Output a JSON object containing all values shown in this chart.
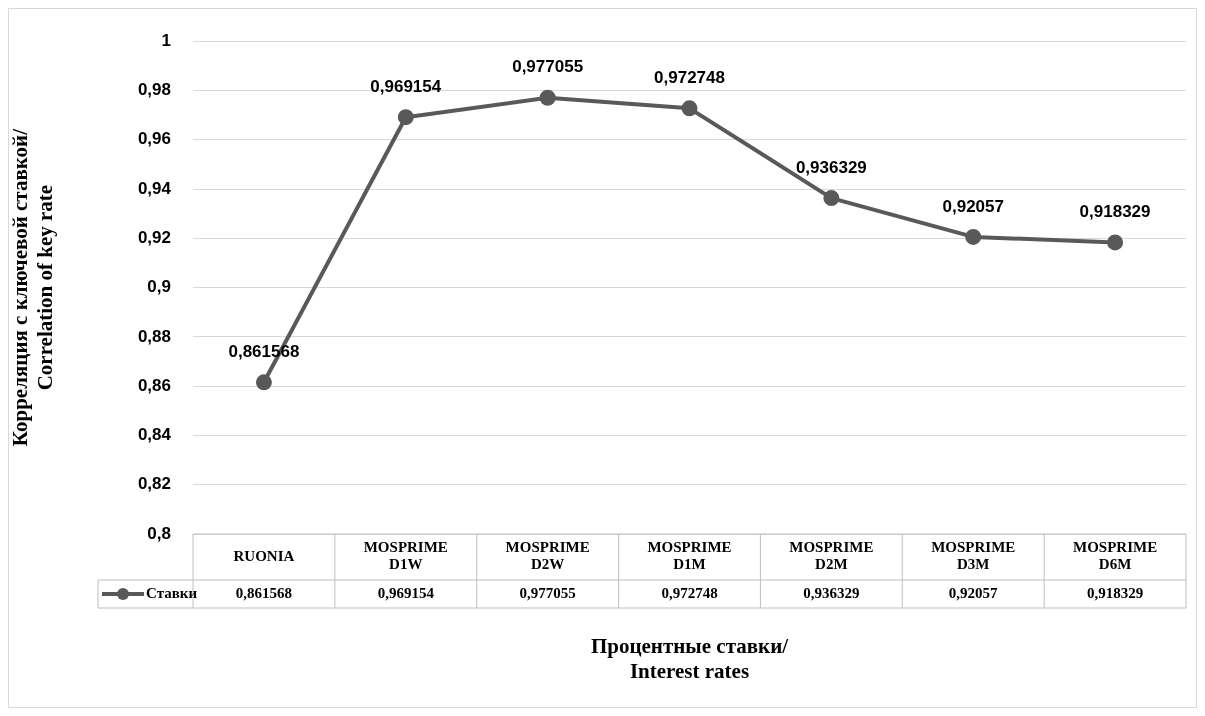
{
  "chart_data": {
    "type": "line",
    "xlabel": "Процентные ставки/ Interest rates",
    "ylabel": "Корреляция с ключевой ставкой/ Correlation of key rate",
    "categories": [
      "RUONIA",
      "MOSPRIME D1W",
      "MOSPRIME D2W",
      "MOSPRIME D1M",
      "MOSPRIME D2M",
      "MOSPRIME D3M",
      "MOSPRIME D6M"
    ],
    "series": [
      {
        "name": "Ставки",
        "color": "#595959",
        "values": [
          0.861568,
          0.969154,
          0.977055,
          0.972748,
          0.936329,
          0.92057,
          0.918329
        ],
        "value_labels": [
          "0,861568",
          "0,969154",
          "0,977055",
          "0,972748",
          "0,936329",
          "0,92057",
          "0,918329"
        ]
      }
    ],
    "ylim": [
      0.8,
      1
    ],
    "yticks": [
      {
        "value": 0.8,
        "label": "0,8"
      },
      {
        "value": 0.82,
        "label": "0,82"
      },
      {
        "value": 0.84,
        "label": "0,84"
      },
      {
        "value": 0.86,
        "label": "0,86"
      },
      {
        "value": 0.88,
        "label": "0,88"
      },
      {
        "value": 0.9,
        "label": "0,9"
      },
      {
        "value": 0.92,
        "label": "0,92"
      },
      {
        "value": 0.94,
        "label": "0,94"
      },
      {
        "value": 0.96,
        "label": "0,96"
      },
      {
        "value": 0.98,
        "label": "0,98"
      },
      {
        "value": 1,
        "label": "1"
      }
    ],
    "grid": "y",
    "marker": "circle",
    "line_style": "solid",
    "legend": "bottom"
  }
}
